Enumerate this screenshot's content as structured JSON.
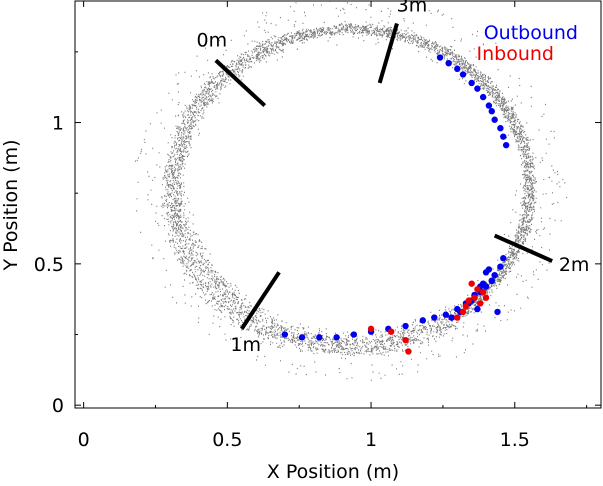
{
  "chart_data": {
    "type": "scatter",
    "title": "",
    "xlabel": "X Position (m)",
    "ylabel": "Y Position (m)",
    "xlim": [
      -0.03,
      1.8
    ],
    "ylim": [
      -0.01,
      1.43
    ],
    "x_ticks": [
      {
        "value": 0,
        "label": "0"
      },
      {
        "value": 0.5,
        "label": "0.5"
      },
      {
        "value": 1,
        "label": "1"
      },
      {
        "value": 1.5,
        "label": "1.5"
      }
    ],
    "y_ticks": [
      {
        "value": 0,
        "label": "0"
      },
      {
        "value": 0.5,
        "label": "0.5"
      },
      {
        "value": 1,
        "label": "1"
      }
    ],
    "grid": false,
    "legend_position": "top-right",
    "legend": [
      {
        "name": "Outbound",
        "color": "#0000ee"
      },
      {
        "name": "Inbound",
        "color": "#ee0000"
      }
    ],
    "track": {
      "color": "#7a7a7a",
      "center": [
        0.93,
        0.77
      ],
      "radius_x": 0.62,
      "radius_y": 0.56
    },
    "distance_markers": [
      {
        "label": "0m",
        "x1": 0.46,
        "y1": 1.22,
        "x2": 0.63,
        "y2": 1.06
      },
      {
        "label": "3m",
        "x1": 1.09,
        "y1": 1.35,
        "x2": 1.03,
        "y2": 1.14
      },
      {
        "label": "2m",
        "x1": 1.43,
        "y1": 0.6,
        "x2": 1.63,
        "y2": 0.51
      },
      {
        "label": "1m",
        "x1": 0.68,
        "y1": 0.47,
        "x2": 0.55,
        "y2": 0.27
      }
    ],
    "series": [
      {
        "name": "Outbound",
        "color": "#0000ee",
        "x": [
          1.24,
          1.27,
          1.3,
          1.32,
          1.35,
          1.37,
          1.39,
          1.41,
          1.42,
          1.43,
          1.45,
          1.46,
          1.47,
          1.46,
          1.45,
          1.43,
          1.42,
          1.4,
          1.38,
          1.36,
          1.34,
          1.3,
          1.26,
          1.22,
          1.18,
          1.12,
          1.06,
          1.0,
          0.94,
          0.88,
          0.82,
          0.76,
          0.7,
          1.38,
          1.4,
          1.36,
          1.33,
          1.42,
          1.39,
          1.44,
          1.37,
          1.41,
          1.35,
          1.31,
          1.28
        ],
        "y": [
          1.23,
          1.21,
          1.19,
          1.17,
          1.14,
          1.12,
          1.09,
          1.06,
          1.04,
          1.01,
          0.98,
          0.95,
          0.92,
          0.52,
          0.49,
          0.46,
          0.44,
          0.42,
          0.4,
          0.38,
          0.36,
          0.34,
          0.32,
          0.31,
          0.3,
          0.28,
          0.27,
          0.26,
          0.25,
          0.24,
          0.24,
          0.24,
          0.25,
          0.42,
          0.47,
          0.39,
          0.36,
          0.44,
          0.43,
          0.33,
          0.34,
          0.48,
          0.37,
          0.33,
          0.31
        ]
      },
      {
        "name": "Inbound",
        "color": "#ee0000",
        "x": [
          1.35,
          1.37,
          1.39,
          1.36,
          1.38,
          1.34,
          1.33,
          1.4,
          1.32,
          1.3,
          1.12,
          1.07,
          1.0,
          1.13
        ],
        "y": [
          0.43,
          0.41,
          0.4,
          0.38,
          0.36,
          0.37,
          0.35,
          0.38,
          0.33,
          0.31,
          0.23,
          0.26,
          0.27,
          0.19
        ]
      }
    ]
  }
}
